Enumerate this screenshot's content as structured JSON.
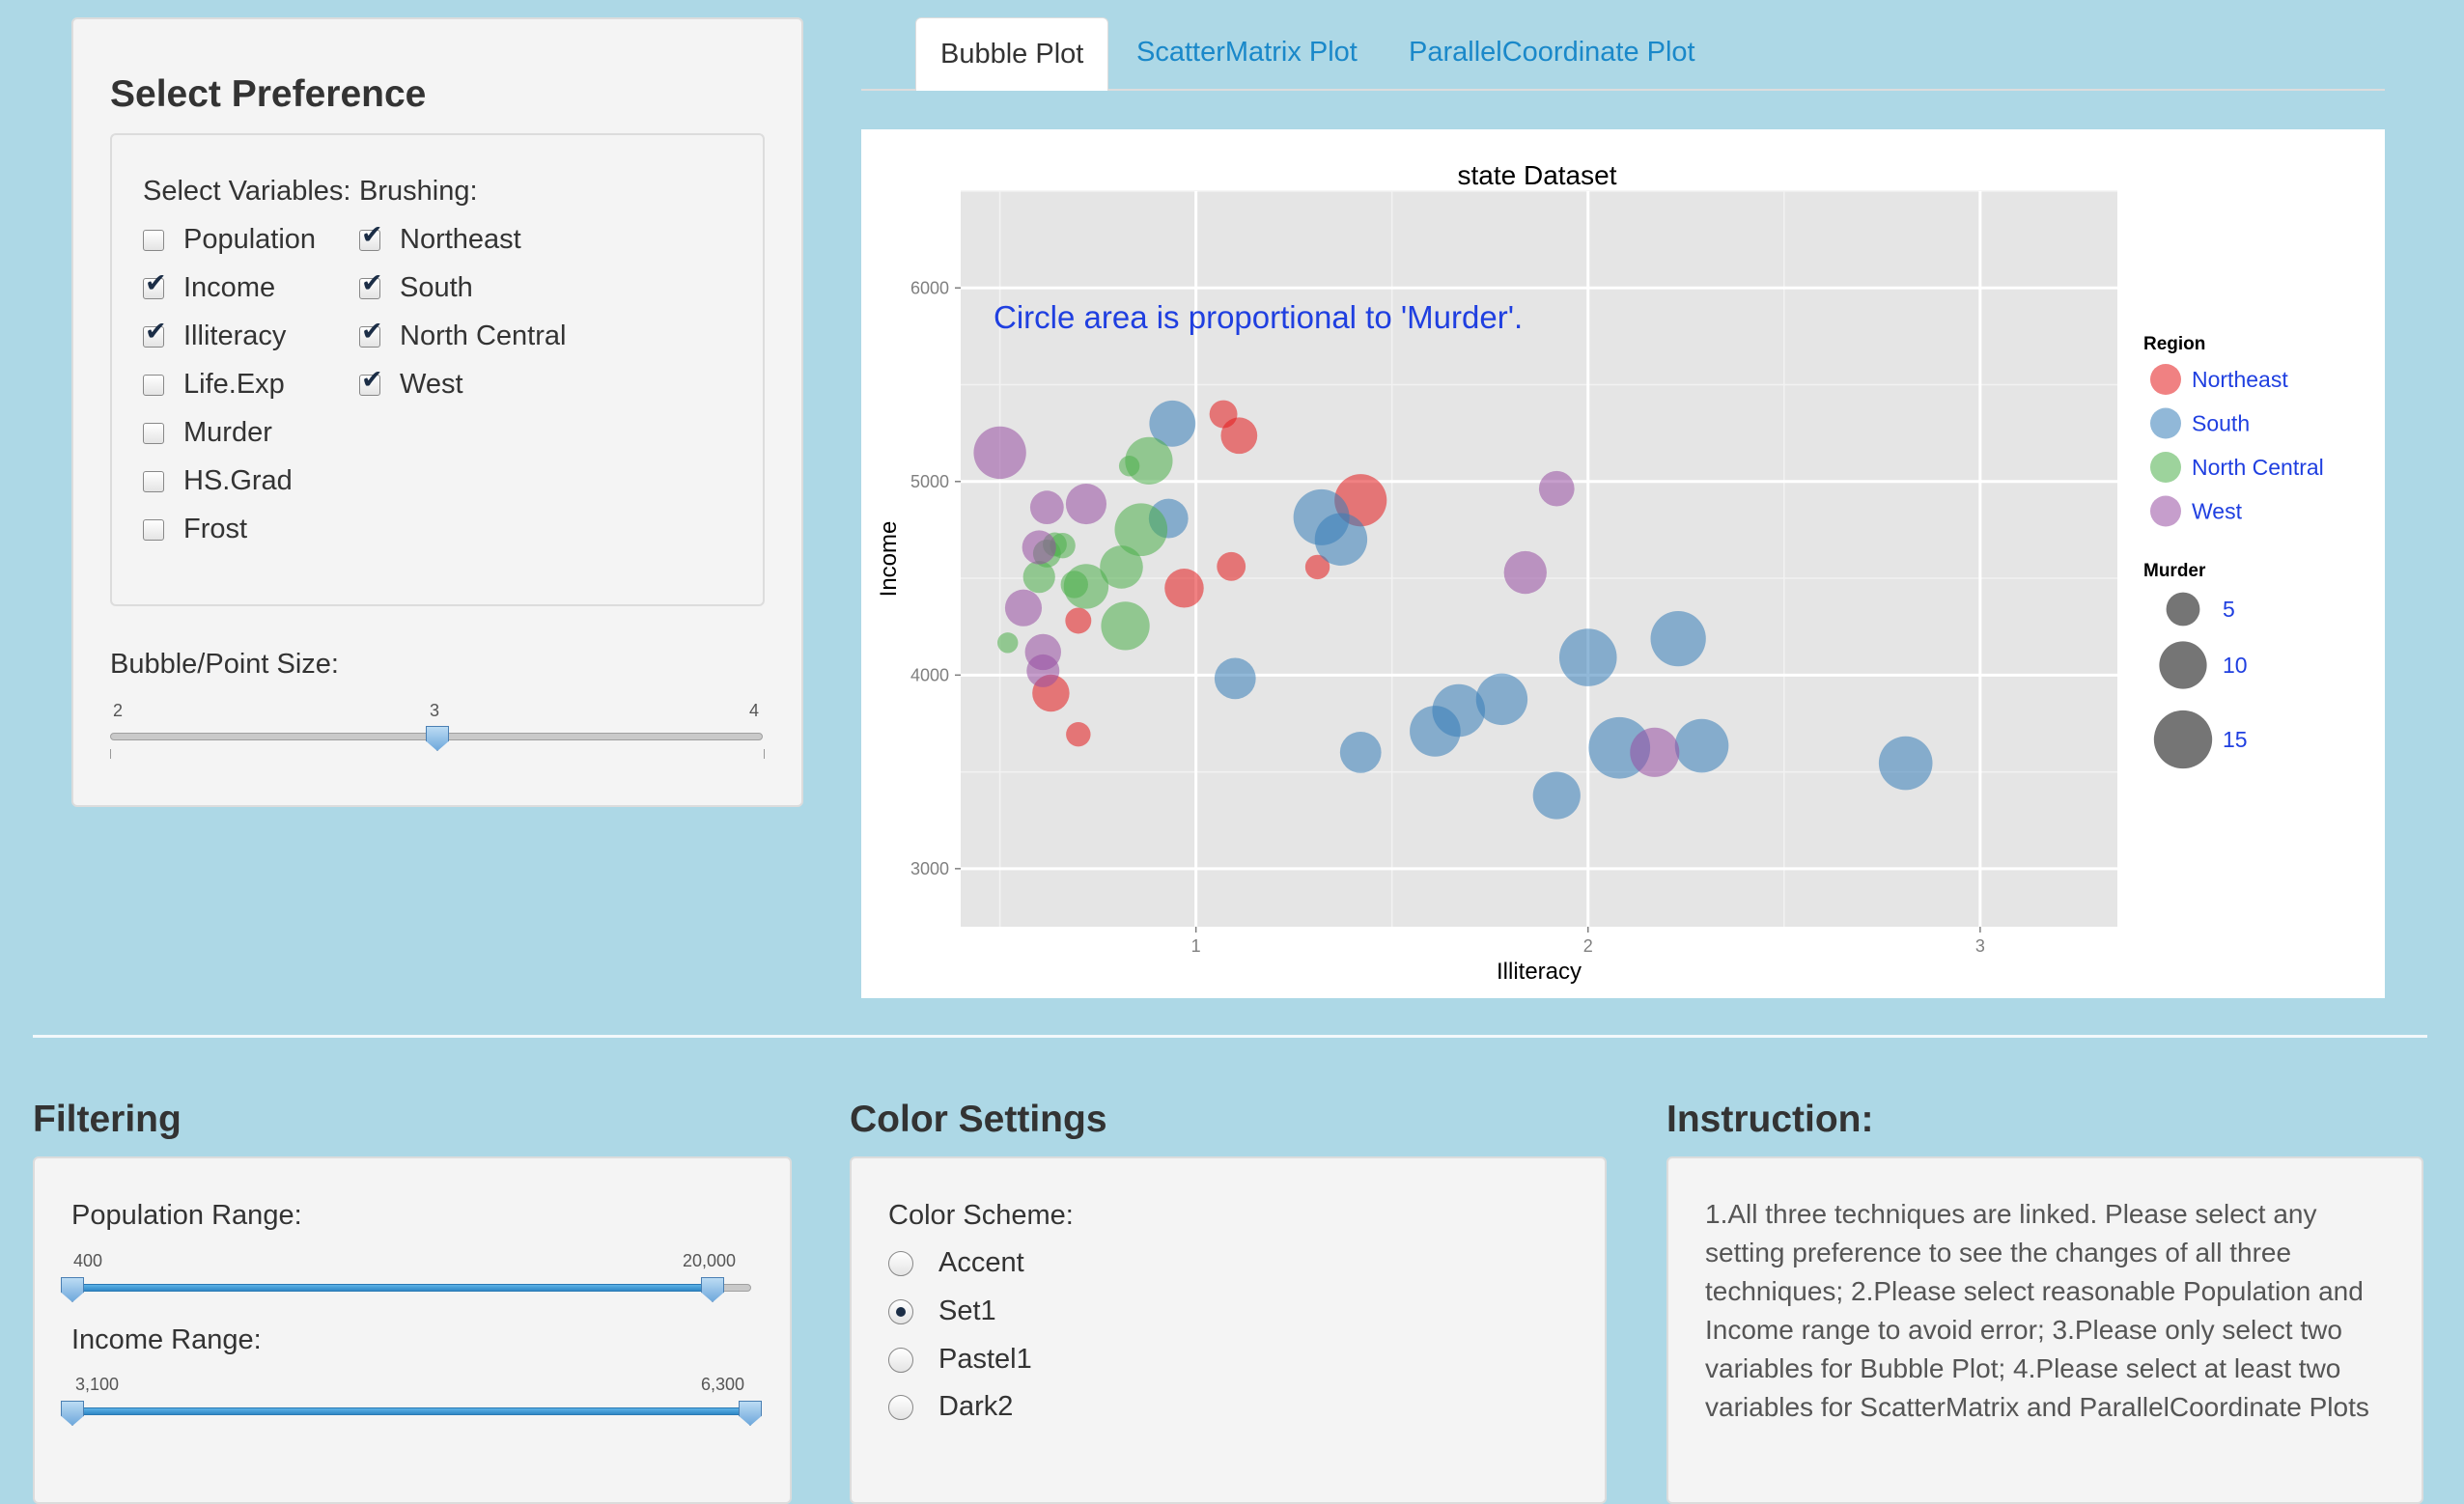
{
  "select_panel": {
    "title": "Select Preference",
    "variables_label": "Select Variables:",
    "brushing_label": "Brushing:",
    "variables": [
      {
        "label": "Population",
        "checked": false
      },
      {
        "label": "Income",
        "checked": true
      },
      {
        "label": "Illiteracy",
        "checked": true
      },
      {
        "label": "Life.Exp",
        "checked": false
      },
      {
        "label": "Murder",
        "checked": false
      },
      {
        "label": "HS.Grad",
        "checked": false
      },
      {
        "label": "Frost",
        "checked": false
      }
    ],
    "brushing": [
      {
        "label": "Northeast",
        "checked": true
      },
      {
        "label": "South",
        "checked": true
      },
      {
        "label": "North Central",
        "checked": true
      },
      {
        "label": "West",
        "checked": true
      }
    ],
    "size_slider": {
      "label": "Bubble/Point Size:",
      "min": "2",
      "max": "4",
      "value": "3",
      "fraction": 0.5
    }
  },
  "tabs": [
    {
      "label": "Bubble Plot",
      "active": true
    },
    {
      "label": "ScatterMatrix Plot",
      "active": false
    },
    {
      "label": "ParallelCoordinate Plot",
      "active": false
    }
  ],
  "chart_data": {
    "type": "scatter",
    "title": "state Dataset",
    "xlabel": "Illiteracy",
    "ylabel": "Income",
    "annotation": "Circle area is proportional to 'Murder'.",
    "xlim": [
      0.4,
      3.35
    ],
    "ylim": [
      2700,
      6500
    ],
    "xticks": [
      "1",
      "2",
      "3"
    ],
    "yticks": [
      "3000",
      "4000",
      "5000",
      "6000"
    ],
    "grid": true,
    "legend_position": "right",
    "legend_region_title": "Region",
    "legend_size_title": "Murder",
    "size_legend": [
      "5",
      "10",
      "15"
    ],
    "regions": [
      {
        "name": "Northeast",
        "color": "#e41a1c"
      },
      {
        "name": "South",
        "color": "#377eb8"
      },
      {
        "name": "North Central",
        "color": "#4daf4a"
      },
      {
        "name": "West",
        "color": "#984ea3"
      }
    ],
    "points": [
      {
        "x": 1.07,
        "y": 5348,
        "murder": 3.1,
        "region": "Northeast"
      },
      {
        "x": 1.11,
        "y": 5237,
        "murder": 5.3,
        "region": "Northeast"
      },
      {
        "x": 1.42,
        "y": 4903,
        "murder": 10.9,
        "region": "Northeast"
      },
      {
        "x": 1.09,
        "y": 4561,
        "murder": 3.3,
        "region": "Northeast"
      },
      {
        "x": 1.31,
        "y": 4558,
        "murder": 2.4,
        "region": "Northeast"
      },
      {
        "x": 0.97,
        "y": 4449,
        "murder": 6.1,
        "region": "Northeast"
      },
      {
        "x": 0.7,
        "y": 4281,
        "murder": 2.7,
        "region": "Northeast"
      },
      {
        "x": 0.63,
        "y": 3907,
        "murder": 5.5,
        "region": "Northeast"
      },
      {
        "x": 0.7,
        "y": 3694,
        "murder": 2.4,
        "region": "Northeast"
      },
      {
        "x": 0.94,
        "y": 5299,
        "murder": 8.5,
        "region": "South"
      },
      {
        "x": 0.93,
        "y": 4809,
        "murder": 6.2,
        "region": "South"
      },
      {
        "x": 1.32,
        "y": 4815,
        "murder": 12.5,
        "region": "South"
      },
      {
        "x": 1.37,
        "y": 4701,
        "murder": 11.0,
        "region": "South"
      },
      {
        "x": 1.1,
        "y": 3982,
        "murder": 6.8,
        "region": "South"
      },
      {
        "x": 1.42,
        "y": 3601,
        "murder": 6.8,
        "region": "South"
      },
      {
        "x": 2.0,
        "y": 4091,
        "murder": 13.2,
        "region": "South"
      },
      {
        "x": 2.23,
        "y": 4188,
        "murder": 12.2,
        "region": "South"
      },
      {
        "x": 1.78,
        "y": 3875,
        "murder": 10.6,
        "region": "South"
      },
      {
        "x": 1.67,
        "y": 3817,
        "murder": 11.1,
        "region": "South"
      },
      {
        "x": 1.61,
        "y": 3710,
        "murder": 10.3,
        "region": "South"
      },
      {
        "x": 2.08,
        "y": 3624,
        "murder": 15.1,
        "region": "South"
      },
      {
        "x": 2.29,
        "y": 3635,
        "murder": 11.5,
        "region": "South"
      },
      {
        "x": 1.92,
        "y": 3378,
        "murder": 9.0,
        "region": "South"
      },
      {
        "x": 2.81,
        "y": 3545,
        "murder": 11.5,
        "region": "South"
      },
      {
        "x": 0.88,
        "y": 5107,
        "murder": 9.0,
        "region": "North Central"
      },
      {
        "x": 0.83,
        "y": 5080,
        "murder": 1.7,
        "region": "North Central"
      },
      {
        "x": 0.86,
        "y": 4751,
        "murder": 11.1,
        "region": "North Central"
      },
      {
        "x": 0.81,
        "y": 4558,
        "murder": 7.4,
        "region": "North Central"
      },
      {
        "x": 0.72,
        "y": 4458,
        "murder": 8.0,
        "region": "North Central"
      },
      {
        "x": 0.82,
        "y": 4254,
        "murder": 9.4,
        "region": "North Central"
      },
      {
        "x": 0.64,
        "y": 4675,
        "murder": 2.3,
        "region": "North Central"
      },
      {
        "x": 0.66,
        "y": 4669,
        "murder": 2.6,
        "region": "North Central"
      },
      {
        "x": 0.62,
        "y": 4628,
        "murder": 3.1,
        "region": "North Central"
      },
      {
        "x": 0.6,
        "y": 4507,
        "murder": 4.1,
        "region": "North Central"
      },
      {
        "x": 0.69,
        "y": 4468,
        "murder": 3.0,
        "region": "North Central"
      },
      {
        "x": 0.52,
        "y": 4167,
        "murder": 1.7,
        "region": "North Central"
      },
      {
        "x": 0.5,
        "y": 5149,
        "murder": 11.0,
        "region": "West"
      },
      {
        "x": 0.62,
        "y": 4866,
        "murder": 4.5,
        "region": "West"
      },
      {
        "x": 0.72,
        "y": 4884,
        "murder": 6.6,
        "region": "West"
      },
      {
        "x": 1.92,
        "y": 4963,
        "murder": 5.0,
        "region": "West"
      },
      {
        "x": 1.84,
        "y": 4530,
        "murder": 7.3,
        "region": "West"
      },
      {
        "x": 0.6,
        "y": 4660,
        "murder": 4.6,
        "region": "West"
      },
      {
        "x": 0.56,
        "y": 4347,
        "murder": 5.4,
        "region": "West"
      },
      {
        "x": 0.61,
        "y": 4119,
        "murder": 5.2,
        "region": "West"
      },
      {
        "x": 0.61,
        "y": 4022,
        "murder": 4.3,
        "region": "West"
      },
      {
        "x": 2.17,
        "y": 3601,
        "murder": 9.7,
        "region": "West"
      }
    ]
  },
  "filtering": {
    "title": "Filtering",
    "population": {
      "label": "Population Range:",
      "min_label": "400",
      "max_label": "20,000",
      "low_fraction": 0.0,
      "high_fraction": 0.96
    },
    "income": {
      "label": "Income Range:",
      "min_label": "3,100",
      "max_label": "6,300",
      "low_fraction": 0.0,
      "high_fraction": 1.0
    }
  },
  "color_settings": {
    "title": "Color Settings",
    "label": "Color Scheme:",
    "options": [
      {
        "label": "Accent",
        "checked": false
      },
      {
        "label": "Set1",
        "checked": true
      },
      {
        "label": "Pastel1",
        "checked": false
      },
      {
        "label": "Dark2",
        "checked": false
      }
    ]
  },
  "instruction": {
    "title": "Instruction:",
    "lines": [
      "1.All three techniques are linked. Please select any",
      "setting preference to see the changes of all three",
      "techniques; 2.Please select reasonable Population and",
      "Income range to avoid error; 3.Please only select two",
      "variables for Bubble Plot; 4.Please select at least two",
      "variables for ScatterMatrix and ParallelCoordinate Plots"
    ]
  }
}
